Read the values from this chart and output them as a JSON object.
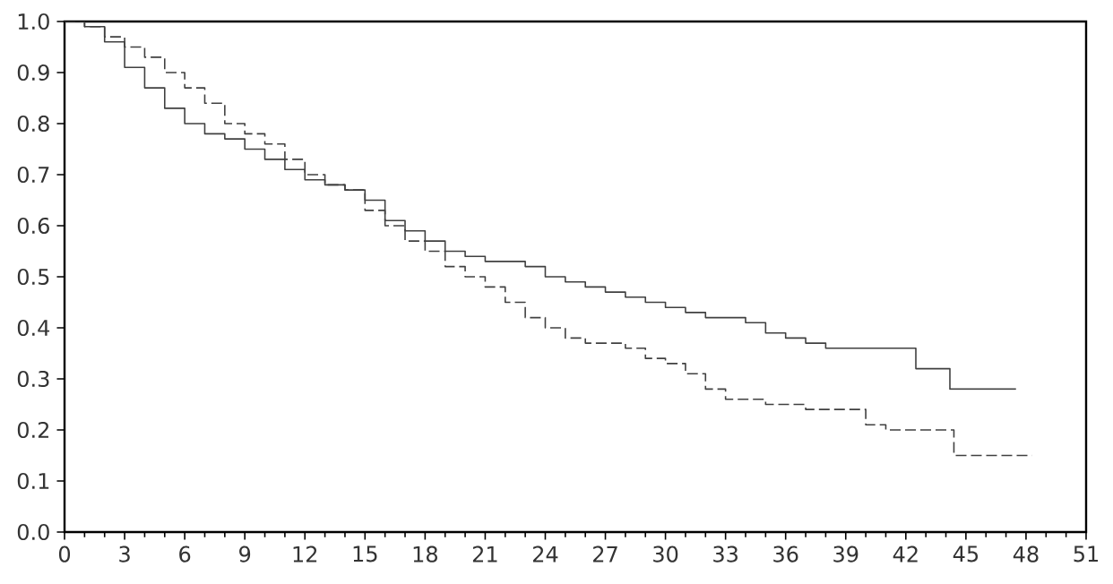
{
  "chart_data": {
    "type": "step",
    "xlim": [
      0,
      51
    ],
    "ylim": [
      0,
      1.0
    ],
    "xticks": [
      0,
      3,
      6,
      9,
      12,
      15,
      18,
      21,
      24,
      27,
      30,
      33,
      36,
      39,
      42,
      45,
      48,
      51
    ],
    "yticks": [
      {
        "value": 0,
        "label": "0.0"
      },
      0.1,
      0.2,
      0.3,
      0.4,
      0.5,
      0.6,
      0.7,
      0.8,
      0.9,
      {
        "value": 1,
        "label": "1.0"
      }
    ],
    "grid": false,
    "marker": "none",
    "series": [
      {
        "color": "#404040",
        "line_style": "solid",
        "x": [
          0,
          1,
          2,
          3,
          4,
          5,
          6,
          7,
          8,
          9,
          10,
          11,
          12,
          13,
          14,
          15,
          16,
          17,
          18,
          19,
          20,
          21,
          22,
          23,
          24,
          25,
          26,
          27,
          28,
          29,
          30,
          31,
          32,
          33,
          34,
          35,
          36,
          37,
          38,
          40,
          42.5,
          44.2,
          47.5
        ],
        "values": [
          1.0,
          0.99,
          0.96,
          0.91,
          0.87,
          0.83,
          0.8,
          0.78,
          0.77,
          0.75,
          0.73,
          0.71,
          0.69,
          0.68,
          0.67,
          0.65,
          0.61,
          0.59,
          0.57,
          0.55,
          0.54,
          0.53,
          0.53,
          0.52,
          0.5,
          0.49,
          0.48,
          0.47,
          0.46,
          0.45,
          0.44,
          0.43,
          0.42,
          0.42,
          0.41,
          0.39,
          0.38,
          0.37,
          0.36,
          0.36,
          0.32,
          0.28,
          0.28
        ]
      },
      {
        "color": "#404040",
        "line_style": "dashed",
        "x": [
          0,
          1,
          2,
          3,
          4,
          5,
          6,
          7,
          8,
          9,
          10,
          11,
          12,
          13,
          14,
          15,
          16,
          17,
          18,
          19,
          20,
          21,
          22,
          23,
          24,
          25,
          26,
          27,
          28,
          29,
          30,
          31,
          32,
          33,
          34,
          35,
          36,
          37,
          38,
          39,
          40,
          41,
          44.4,
          48.3
        ],
        "values": [
          1.0,
          0.99,
          0.97,
          0.95,
          0.93,
          0.9,
          0.87,
          0.84,
          0.8,
          0.78,
          0.76,
          0.73,
          0.7,
          0.68,
          0.67,
          0.63,
          0.6,
          0.57,
          0.55,
          0.52,
          0.5,
          0.48,
          0.45,
          0.42,
          0.4,
          0.38,
          0.37,
          0.37,
          0.36,
          0.34,
          0.33,
          0.31,
          0.28,
          0.26,
          0.26,
          0.25,
          0.25,
          0.24,
          0.24,
          0.24,
          0.21,
          0.2,
          0.15,
          0.15
        ]
      }
    ]
  }
}
